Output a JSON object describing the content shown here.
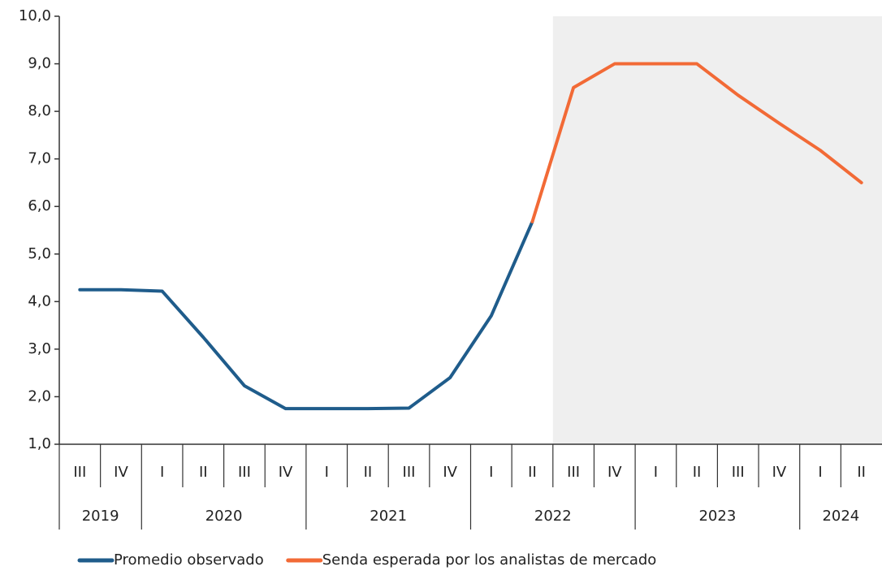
{
  "chart_data": {
    "type": "line",
    "categories": [
      "III",
      "IV",
      "I",
      "II",
      "III",
      "IV",
      "I",
      "II",
      "III",
      "IV",
      "I",
      "II",
      "III",
      "IV",
      "I",
      "II",
      "III",
      "IV",
      "I",
      "II"
    ],
    "years": [
      "2019",
      "2020",
      "2021",
      "2022",
      "2023",
      "2024"
    ],
    "series": [
      {
        "name": "Promedio observado",
        "color": "#1f5c8b",
        "values": [
          4.25,
          4.25,
          4.22,
          3.25,
          2.23,
          1.75,
          1.75,
          1.75,
          1.76,
          2.4,
          3.7,
          5.68,
          null,
          null,
          null,
          null,
          null,
          null,
          null,
          null
        ]
      },
      {
        "name": "Senda esperada por los analistas de mercado",
        "color": "#f26a36",
        "values": [
          null,
          null,
          null,
          null,
          null,
          null,
          null,
          null,
          null,
          null,
          null,
          5.68,
          8.5,
          9.0,
          9.0,
          9.0,
          8.34,
          7.75,
          7.18,
          6.5
        ]
      }
    ],
    "ylim": [
      1,
      10
    ],
    "yticks": [
      {
        "value": 1,
        "label": "1,0"
      },
      {
        "value": 2,
        "label": "2,0"
      },
      {
        "value": 3,
        "label": "3,0"
      },
      {
        "value": 4,
        "label": "4,0"
      },
      {
        "value": 5,
        "label": "5,0"
      },
      {
        "value": 6,
        "label": "6,0"
      },
      {
        "value": 7,
        "label": "7,0"
      },
      {
        "value": 8,
        "label": "8,0"
      },
      {
        "value": 9,
        "label": "9,0"
      },
      {
        "value": 10,
        "label": "10,0"
      }
    ],
    "grid": false
  }
}
